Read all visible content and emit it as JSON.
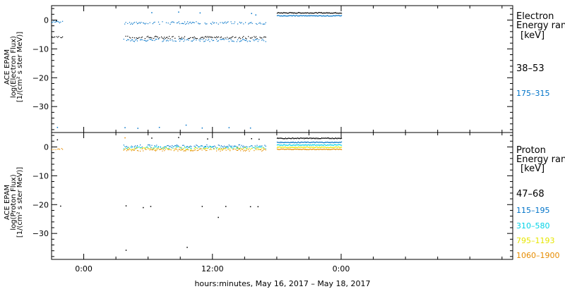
{
  "chart_data": [
    {
      "type": "scatter",
      "panel": "electron",
      "ylabel_lines": [
        "ACE EPAM",
        "log(Electron Flux)",
        "[1/(cm² s ster MeV)]"
      ],
      "ylim": [
        -39,
        5
      ],
      "y_ticks": [
        0,
        -10,
        -20,
        -30
      ],
      "y_tick_labels": [
        "0",
        "−10",
        "−20",
        "−30"
      ],
      "legend": {
        "title_lines": [
          "Electron",
          "Energy ranges",
          "[keV]"
        ],
        "entries": [
          "38–53",
          "175–315"
        ]
      },
      "series": [
        {
          "name": "38–53",
          "color": "#000000",
          "segments": [
            {
              "x": [
                -3.0,
                -2.0
              ],
              "y": -5.8
            },
            {
              "x": [
                3.7,
                17.0
              ],
              "y": -6.0
            },
            {
              "x": [
                18.0,
                24.0
              ],
              "y": 2.5
            }
          ],
          "sparse_points": [
            [
              -2.6,
              -0.3
            ]
          ]
        },
        {
          "name": "175–315",
          "color": "#0073c8",
          "segments": [
            {
              "x": [
                -3.0,
                -2.0
              ],
              "y": -0.6
            },
            {
              "x": [
                3.7,
                17.0
              ],
              "y": -1.0
            },
            {
              "x": [
                3.7,
                17.0
              ],
              "y": -7.0
            },
            {
              "x": [
                18.0,
                24.0
              ],
              "y": 1.5
            }
          ],
          "sparse_points": [
            [
              -2.5,
              -37.2
            ],
            [
              3.8,
              -37.3
            ],
            [
              5.0,
              -37.5
            ],
            [
              7.0,
              -37.2
            ],
            [
              9.5,
              -36.4
            ],
            [
              11.0,
              -37.4
            ],
            [
              13.5,
              -37.3
            ],
            [
              15.5,
              -37.4
            ],
            [
              6.3,
              2.6
            ],
            [
              8.8,
              2.8
            ],
            [
              10.8,
              2.5
            ],
            [
              15.6,
              2.3
            ],
            [
              16.0,
              1.8
            ]
          ]
        }
      ]
    },
    {
      "type": "scatter",
      "panel": "proton",
      "ylabel_lines": [
        "ACE EPAM",
        "log(Proton Flux)",
        "[1/(cm² s ster MeV)]"
      ],
      "ylim": [
        -39,
        5
      ],
      "y_ticks": [
        0,
        -10,
        -20,
        -30
      ],
      "y_tick_labels": [
        "0",
        "−10",
        "−20",
        "−30"
      ],
      "x_ticks": [
        0,
        12,
        24
      ],
      "x_tick_labels": [
        "0:00",
        "12:00",
        "0:00"
      ],
      "xlim": [
        -3,
        40
      ],
      "xlabel": "hours:minutes, May 16, 2017 – May 18, 2017",
      "legend": {
        "title_lines": [
          "Proton",
          "Energy ranges",
          "[keV]"
        ],
        "entries": [
          "47–68",
          "115–195",
          "310–580",
          "795–1193",
          "1060–1900"
        ]
      },
      "series": [
        {
          "name": "47–68",
          "color": "#000000",
          "segments": [
            {
              "x": [
                18.0,
                24.0
              ],
              "y": 3.0
            }
          ],
          "sparse_points": [
            [
              -2.2,
              -20.5
            ],
            [
              3.9,
              -20.4
            ],
            [
              5.5,
              -21.0
            ],
            [
              6.2,
              -20.6
            ],
            [
              11.0,
              -20.6
            ],
            [
              12.5,
              -24.4
            ],
            [
              13.2,
              -20.6
            ],
            [
              15.5,
              -20.7
            ],
            [
              16.2,
              -20.7
            ],
            [
              3.9,
              -35.8
            ],
            [
              9.6,
              -34.8
            ],
            [
              -2.5,
              2.5
            ],
            [
              6.3,
              3.1
            ],
            [
              8.8,
              3.3
            ],
            [
              11.5,
              2.8
            ],
            [
              15.6,
              2.9
            ],
            [
              16.3,
              2.7
            ]
          ]
        },
        {
          "name": "115–195",
          "color": "#0073c8",
          "segments": [
            {
              "x": [
                3.7,
                17.0
              ],
              "y": 0.3
            },
            {
              "x": [
                18.0,
                24.0
              ],
              "y": 1.6
            }
          ],
          "sparse_points": []
        },
        {
          "name": "310–580",
          "color": "#00d2e6",
          "segments": [
            {
              "x": [
                3.7,
                17.0
              ],
              "y": -0.2
            },
            {
              "x": [
                18.0,
                24.0
              ],
              "y": 0.7
            }
          ],
          "sparse_points": []
        },
        {
          "name": "795–1193",
          "color": "#e6e600",
          "segments": [
            {
              "x": [
                3.7,
                17.0
              ],
              "y": -0.6
            },
            {
              "x": [
                18.0,
                24.0
              ],
              "y": -0.1
            }
          ],
          "sparse_points": []
        },
        {
          "name": "1060–1900",
          "color": "#e68c00",
          "segments": [
            {
              "x": [
                -3.0,
                -2.0
              ],
              "y": -0.9
            },
            {
              "x": [
                3.7,
                17.0
              ],
              "y": -1.0
            },
            {
              "x": [
                18.0,
                24.0
              ],
              "y": -0.8
            }
          ],
          "sparse_points": [
            [
              3.8,
              3.2
            ]
          ]
        }
      ]
    }
  ]
}
